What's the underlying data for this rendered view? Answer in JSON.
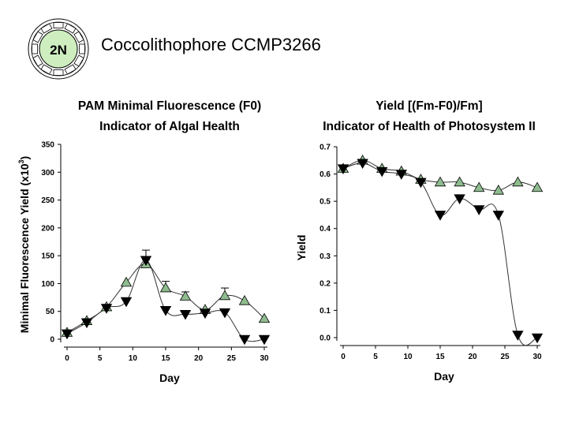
{
  "header": {
    "title": "Coccolithophore CCMP3266",
    "logo_text": "2N"
  },
  "colors": {
    "triangle_fill": "#8fbc8f",
    "marker_dark": "#000000",
    "line": "#444444"
  },
  "chart_data": [
    {
      "type": "line",
      "title_line1": "PAM Minimal Fluorescence (F0)",
      "title_line2": "Indicator of Algal Health",
      "xlabel": "Day",
      "ylabel_main": "Minimal Fluorescence Yield (x10",
      "ylabel_sup": "3",
      "ylabel_end": ")",
      "xlim": [
        0,
        30
      ],
      "ylim": [
        0,
        350
      ],
      "xticks": [
        0,
        5,
        10,
        15,
        20,
        25,
        30
      ],
      "yticks": [
        0,
        50,
        100,
        150,
        200,
        250,
        300,
        350
      ],
      "grid": false,
      "series": [
        {
          "marker": "triangle-up",
          "color": "#8fbc8f",
          "x": [
            0,
            3,
            6,
            9,
            12,
            15,
            18,
            21,
            24,
            27,
            30
          ],
          "y": [
            12,
            33,
            58,
            102,
            135,
            92,
            77,
            53,
            78,
            69,
            37
          ],
          "err": [
            0,
            0,
            0,
            0,
            8,
            12,
            8,
            0,
            14,
            0,
            0
          ]
        },
        {
          "marker": "triangle-down",
          "color": "#000000",
          "x": [
            0,
            3,
            6,
            9,
            12,
            15,
            18,
            21,
            24,
            27,
            30
          ],
          "y": [
            10,
            30,
            56,
            68,
            142,
            52,
            45,
            47,
            48,
            0,
            0
          ],
          "err": [
            0,
            0,
            0,
            0,
            18,
            6,
            0,
            0,
            0,
            0,
            0
          ]
        }
      ]
    },
    {
      "type": "line",
      "title_line1": "Yield [(Fm-F0)/Fm]",
      "title_line2": "Indicator of Health of Photosystem II",
      "xlabel": "Day",
      "ylabel": "Yield",
      "xlim": [
        0,
        30
      ],
      "ylim": [
        0,
        0.7
      ],
      "xticks": [
        0,
        5,
        10,
        15,
        20,
        25,
        30
      ],
      "yticks": [
        0.0,
        0.1,
        0.2,
        0.3,
        0.4,
        0.5,
        0.6,
        0.7
      ],
      "ytick_labels": [
        "0.0",
        "0.1",
        "0.2",
        "0.3",
        "0.4",
        "0.5",
        "0.6",
        "0.7"
      ],
      "grid": false,
      "series": [
        {
          "marker": "triangle-up",
          "color": "#8fbc8f",
          "x": [
            0,
            3,
            6,
            9,
            12,
            15,
            18,
            21,
            24,
            27,
            30
          ],
          "y": [
            0.62,
            0.65,
            0.62,
            0.61,
            0.58,
            0.57,
            0.57,
            0.55,
            0.54,
            0.57,
            0.55
          ]
        },
        {
          "marker": "triangle-down",
          "color": "#000000",
          "x": [
            0,
            3,
            6,
            9,
            12,
            15,
            18,
            21,
            24,
            27,
            30
          ],
          "y": [
            0.62,
            0.64,
            0.61,
            0.6,
            0.57,
            0.45,
            0.51,
            0.47,
            0.45,
            0.01,
            0.0
          ]
        }
      ]
    }
  ]
}
